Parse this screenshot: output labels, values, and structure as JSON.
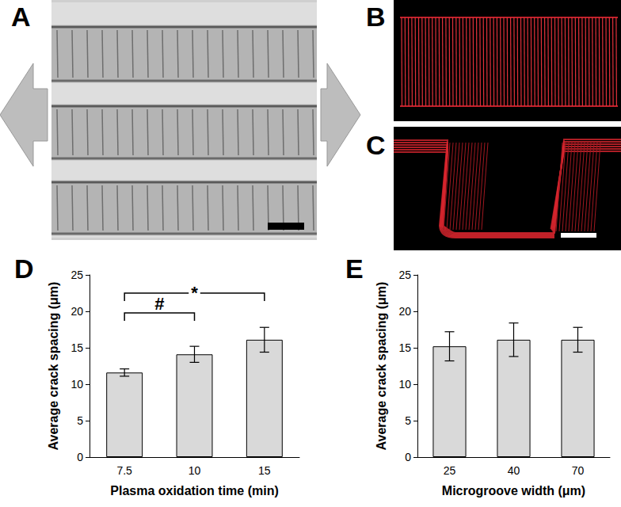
{
  "images": [
    {
      "title": "A"
    },
    {
      "title": "B"
    },
    {
      "title": "C"
    }
  ],
  "chart_data": [
    {
      "type": "bar",
      "title": "D",
      "x_label": "Plasma oxidation time (min)",
      "y_label": "Average crack spacing (μm)",
      "categories": [
        "7.5",
        "10",
        "15"
      ],
      "values": [
        11.6,
        14.1,
        16.1
      ],
      "errors": [
        0.5,
        1.1,
        1.7
      ],
      "color": "#d9d9d9",
      "ylim": [
        0,
        25
      ],
      "yticks": [
        0,
        5,
        10,
        15,
        20,
        25
      ],
      "grid": false,
      "annotations": [
        {
          "text": "#",
          "from": "7.5",
          "to": "10"
        },
        {
          "text": "*",
          "from": "7.5",
          "to": "15"
        }
      ]
    },
    {
      "type": "bar",
      "title": "E",
      "x_label": "Microgroove width (μm)",
      "y_label": "Average crack spacing (μm)",
      "categories": [
        "25",
        "40",
        "70"
      ],
      "values": [
        15.2,
        16.1,
        16.1
      ],
      "errors": [
        2.0,
        2.3,
        1.7
      ],
      "color": "#d9d9d9",
      "ylim": [
        0,
        25
      ],
      "yticks": [
        0,
        5,
        10,
        15,
        20,
        25
      ],
      "grid": false
    }
  ]
}
